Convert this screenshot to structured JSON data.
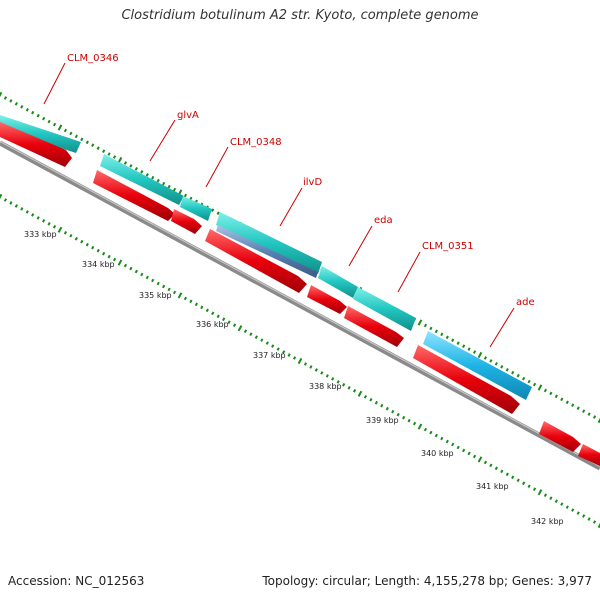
{
  "title": "Clostridium botulinum A2 str. Kyoto, complete genome",
  "accession": "Accession: NC_012563",
  "metadata": "Topology: circular; Length: 4,155,278 bp; Genes: 3,977",
  "colors": {
    "cds": "#e8000b",
    "gene_teal": "#20c5c0",
    "gene_blue": "#19b5e6",
    "gene_slate": "#5a82b4",
    "backbone": "#808080",
    "tick": "#1a8a1a",
    "label": "#cc0000"
  },
  "gene_labels": [
    {
      "name": "CLM_0346"
    },
    {
      "name": "glvA"
    },
    {
      "name": "CLM_0348"
    },
    {
      "name": "ilvD"
    },
    {
      "name": "eda"
    },
    {
      "name": "CLM_0351"
    },
    {
      "name": "ade"
    }
  ],
  "kbp_labels": [
    {
      "text": "333 kbp"
    },
    {
      "text": "334 kbp"
    },
    {
      "text": "335 kbp"
    },
    {
      "text": "336 kbp"
    },
    {
      "text": "337 kbp"
    },
    {
      "text": "338 kbp"
    },
    {
      "text": "339 kbp"
    },
    {
      "text": "340 kbp"
    },
    {
      "text": "341 kbp"
    },
    {
      "text": "342 kbp"
    }
  ]
}
